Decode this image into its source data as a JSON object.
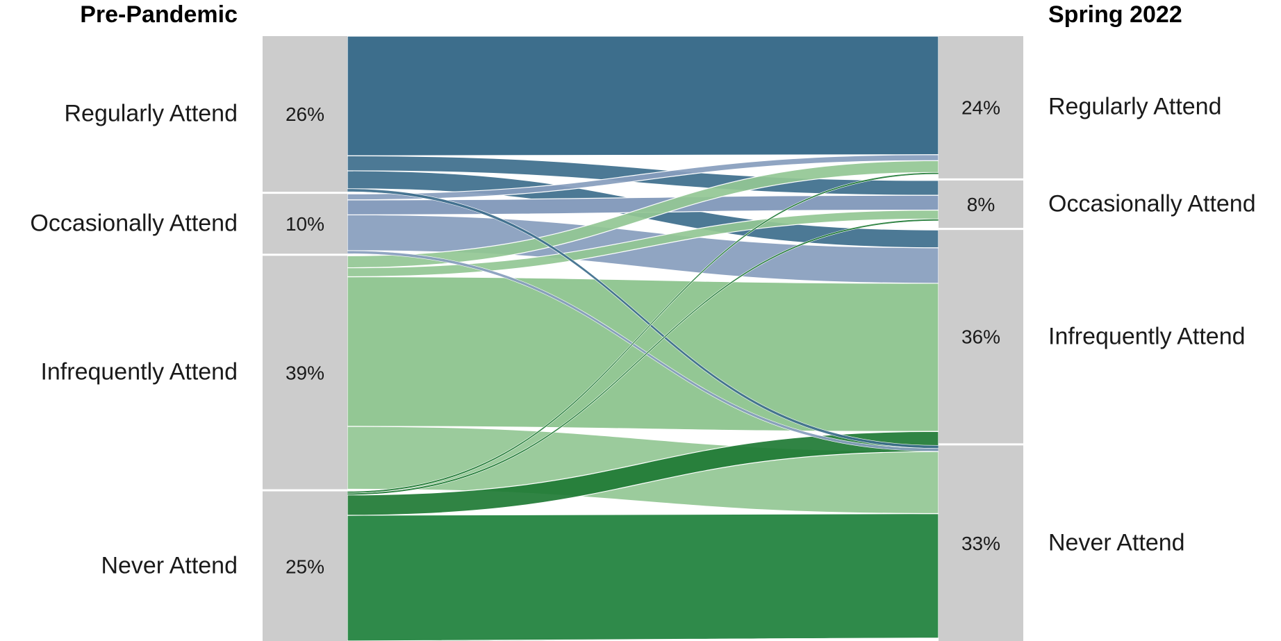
{
  "chart_data": {
    "type": "alluvial",
    "title": "",
    "axes": [
      {
        "name": "Pre-Pandemic",
        "strata": [
          {
            "label": "Regularly Attend",
            "percent_label": "26%",
            "value": 26
          },
          {
            "label": "Occasionally Attend",
            "percent_label": "10%",
            "value": 10
          },
          {
            "label": "Infrequently Attend",
            "percent_label": "39%",
            "value": 39
          },
          {
            "label": "Never Attend",
            "percent_label": "25%",
            "value": 25
          }
        ]
      },
      {
        "name": "Spring 2022",
        "strata": [
          {
            "label": "Regularly Attend",
            "percent_label": "24%",
            "value": 24
          },
          {
            "label": "Occasionally Attend",
            "percent_label": "8%",
            "value": 8
          },
          {
            "label": "Infrequently Attend",
            "percent_label": "36%",
            "value": 36
          },
          {
            "label": "Never Attend",
            "percent_label": "33%",
            "value": 33
          }
        ]
      }
    ],
    "flows": [
      {
        "from": "Regularly Attend",
        "to": "Regularly Attend",
        "value": 20
      },
      {
        "from": "Regularly Attend",
        "to": "Occasionally Attend",
        "value": 2.5
      },
      {
        "from": "Regularly Attend",
        "to": "Infrequently Attend",
        "value": 3
      },
      {
        "from": "Regularly Attend",
        "to": "Never Attend",
        "value": 0.5
      },
      {
        "from": "Occasionally Attend",
        "to": "Regularly Attend",
        "value": 1
      },
      {
        "from": "Occasionally Attend",
        "to": "Occasionally Attend",
        "value": 2.5
      },
      {
        "from": "Occasionally Attend",
        "to": "Infrequently Attend",
        "value": 6
      },
      {
        "from": "Occasionally Attend",
        "to": "Never Attend",
        "value": 0.5
      },
      {
        "from": "Infrequently Attend",
        "to": "Regularly Attend",
        "value": 2
      },
      {
        "from": "Infrequently Attend",
        "to": "Occasionally Attend",
        "value": 1.5
      },
      {
        "from": "Infrequently Attend",
        "to": "Infrequently Attend",
        "value": 25
      },
      {
        "from": "Infrequently Attend",
        "to": "Never Attend",
        "value": 10.5
      },
      {
        "from": "Never Attend",
        "to": "Regularly Attend",
        "value": 0.3
      },
      {
        "from": "Never Attend",
        "to": "Occasionally Attend",
        "value": 0.3
      },
      {
        "from": "Never Attend",
        "to": "Infrequently Attend",
        "value": 3.4
      },
      {
        "from": "Never Attend",
        "to": "Never Attend",
        "value": 21
      }
    ],
    "colors": {
      "Regularly Attend": "#3d6e8c",
      "Occasionally Attend": "#879dbd",
      "Infrequently Attend": "#93c794",
      "Never Attend": "#2f8a4a",
      "Never Attend (highlight)": "#1e7a34",
      "stratum": "#cccccc"
    }
  }
}
